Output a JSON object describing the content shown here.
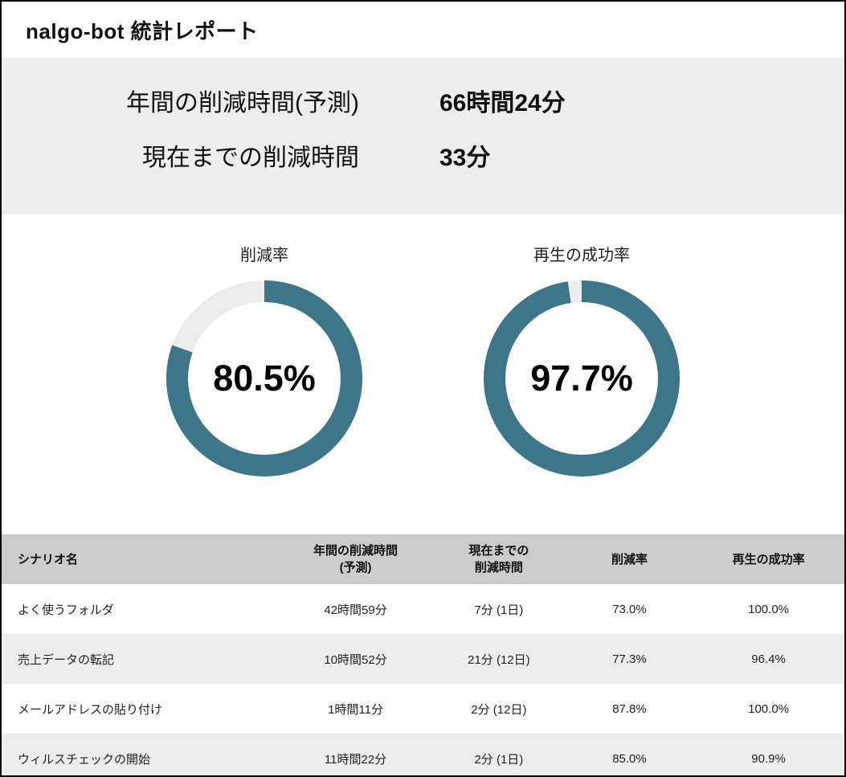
{
  "header": {
    "title": "nalgo-bot 統計レポート"
  },
  "summary": {
    "rows": [
      {
        "label": "年間の削減時間(予測)",
        "value": "66時間24分"
      },
      {
        "label": "現在までの削減時間",
        "value": "33分"
      }
    ]
  },
  "chart_data": [
    {
      "type": "pie",
      "variant": "donut",
      "title": "削減率",
      "value": 80.5,
      "label": "80.5%",
      "color": "#3d758a",
      "track_color": "#ececec"
    },
    {
      "type": "pie",
      "variant": "donut",
      "title": "再生の成功率",
      "value": 97.7,
      "label": "97.7%",
      "color": "#3d758a",
      "track_color": "#ececec"
    }
  ],
  "table": {
    "columns": [
      "シナリオ名",
      "年間の削減時間\n(予測)",
      "現在までの\n削減時間",
      "削減率",
      "再生の成功率"
    ],
    "rows": [
      [
        "よく使うフォルダ",
        "42時間59分",
        "7分 (1日)",
        "73.0%",
        "100.0%"
      ],
      [
        "売上データの転記",
        "10時間52分",
        "21分 (12日)",
        "77.3%",
        "96.4%"
      ],
      [
        "メールアドレスの貼り付け",
        "1時間11分",
        "2分 (12日)",
        "87.8%",
        "100.0%"
      ],
      [
        "ウィルスチェックの開始",
        "11時間22分",
        "2分 (1日)",
        "85.0%",
        "90.9%"
      ]
    ]
  },
  "colors": {
    "accent_teal": "#3d758a",
    "summary_band_bg": "#ededed",
    "table_header_bg": "#cccccc",
    "alt_row_bg": "#ededed",
    "page_border": "#000000"
  }
}
